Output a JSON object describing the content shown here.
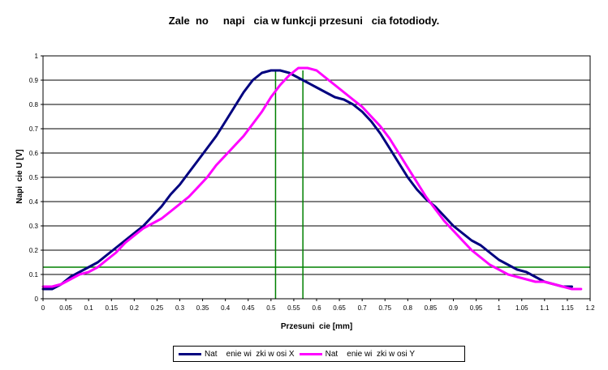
{
  "chart_data": {
    "type": "line",
    "title": "Zale  no     napi   cia w funkcji przesuni   cia fotodiody.",
    "xlabel": "Przesuni  cie [mm]",
    "ylabel": "Napi  cie U [V]",
    "xlim": [
      0,
      1.2
    ],
    "ylim": [
      0,
      1
    ],
    "x_ticks": [
      "0",
      "0.05",
      "0.1",
      "0.15",
      "0.2",
      "0.25",
      "0.3",
      "0.35",
      "0.4",
      "0.45",
      "0.5",
      "0.55",
      "0.6",
      "0.65",
      "0.7",
      "0.75",
      "0.8",
      "0.85",
      "0.9",
      "0.95",
      "1",
      "1.05",
      "1.1",
      "1.15",
      "1.2"
    ],
    "y_ticks": [
      "0",
      "0.1",
      "0.2",
      "0.3",
      "0.4",
      "0.5",
      "0.6",
      "0.7",
      "0.8",
      "0.9",
      "1"
    ],
    "grid": "horizontal",
    "legend_position": "bottom",
    "reference_lines": {
      "vertical": [
        0.51,
        0.57
      ],
      "horizontal": [
        0.13
      ],
      "color": "#008000"
    },
    "series": [
      {
        "name": "Nat    enie wi  zki w osi X",
        "color": "#00007f",
        "x": [
          0,
          0.02,
          0.04,
          0.06,
          0.08,
          0.1,
          0.12,
          0.14,
          0.16,
          0.18,
          0.2,
          0.22,
          0.24,
          0.26,
          0.28,
          0.3,
          0.32,
          0.34,
          0.36,
          0.38,
          0.4,
          0.42,
          0.44,
          0.46,
          0.48,
          0.5,
          0.52,
          0.54,
          0.56,
          0.58,
          0.6,
          0.62,
          0.64,
          0.66,
          0.68,
          0.7,
          0.72,
          0.74,
          0.76,
          0.78,
          0.8,
          0.82,
          0.84,
          0.86,
          0.88,
          0.9,
          0.92,
          0.94,
          0.96,
          0.98,
          1.0,
          1.02,
          1.04,
          1.06,
          1.08,
          1.1,
          1.12,
          1.14,
          1.16
        ],
        "y": [
          0.04,
          0.04,
          0.06,
          0.09,
          0.11,
          0.13,
          0.15,
          0.18,
          0.21,
          0.24,
          0.27,
          0.3,
          0.34,
          0.38,
          0.43,
          0.47,
          0.52,
          0.57,
          0.62,
          0.67,
          0.73,
          0.79,
          0.85,
          0.9,
          0.93,
          0.94,
          0.94,
          0.93,
          0.91,
          0.89,
          0.87,
          0.85,
          0.83,
          0.82,
          0.8,
          0.77,
          0.73,
          0.68,
          0.62,
          0.56,
          0.5,
          0.45,
          0.41,
          0.38,
          0.34,
          0.3,
          0.27,
          0.24,
          0.22,
          0.19,
          0.16,
          0.14,
          0.12,
          0.11,
          0.09,
          0.07,
          0.06,
          0.05,
          0.05
        ]
      },
      {
        "name": "Nat    enie wi  zki w osi Y",
        "color": "#ff00ff",
        "x": [
          0,
          0.02,
          0.04,
          0.06,
          0.08,
          0.1,
          0.12,
          0.14,
          0.16,
          0.18,
          0.2,
          0.22,
          0.24,
          0.26,
          0.28,
          0.3,
          0.32,
          0.34,
          0.36,
          0.38,
          0.4,
          0.42,
          0.44,
          0.46,
          0.48,
          0.5,
          0.52,
          0.54,
          0.56,
          0.58,
          0.6,
          0.62,
          0.64,
          0.66,
          0.68,
          0.7,
          0.72,
          0.74,
          0.76,
          0.78,
          0.8,
          0.82,
          0.84,
          0.86,
          0.88,
          0.9,
          0.92,
          0.94,
          0.96,
          0.98,
          1.0,
          1.02,
          1.04,
          1.06,
          1.08,
          1.1,
          1.12,
          1.14,
          1.16,
          1.18
        ],
        "y": [
          0.05,
          0.05,
          0.06,
          0.08,
          0.1,
          0.11,
          0.13,
          0.16,
          0.19,
          0.23,
          0.26,
          0.29,
          0.31,
          0.33,
          0.36,
          0.39,
          0.42,
          0.46,
          0.5,
          0.55,
          0.59,
          0.63,
          0.67,
          0.72,
          0.77,
          0.83,
          0.88,
          0.92,
          0.95,
          0.95,
          0.94,
          0.91,
          0.88,
          0.85,
          0.82,
          0.79,
          0.75,
          0.71,
          0.66,
          0.6,
          0.54,
          0.48,
          0.42,
          0.37,
          0.32,
          0.28,
          0.24,
          0.2,
          0.17,
          0.14,
          0.12,
          0.1,
          0.09,
          0.08,
          0.07,
          0.07,
          0.06,
          0.05,
          0.04,
          0.04
        ]
      }
    ]
  }
}
